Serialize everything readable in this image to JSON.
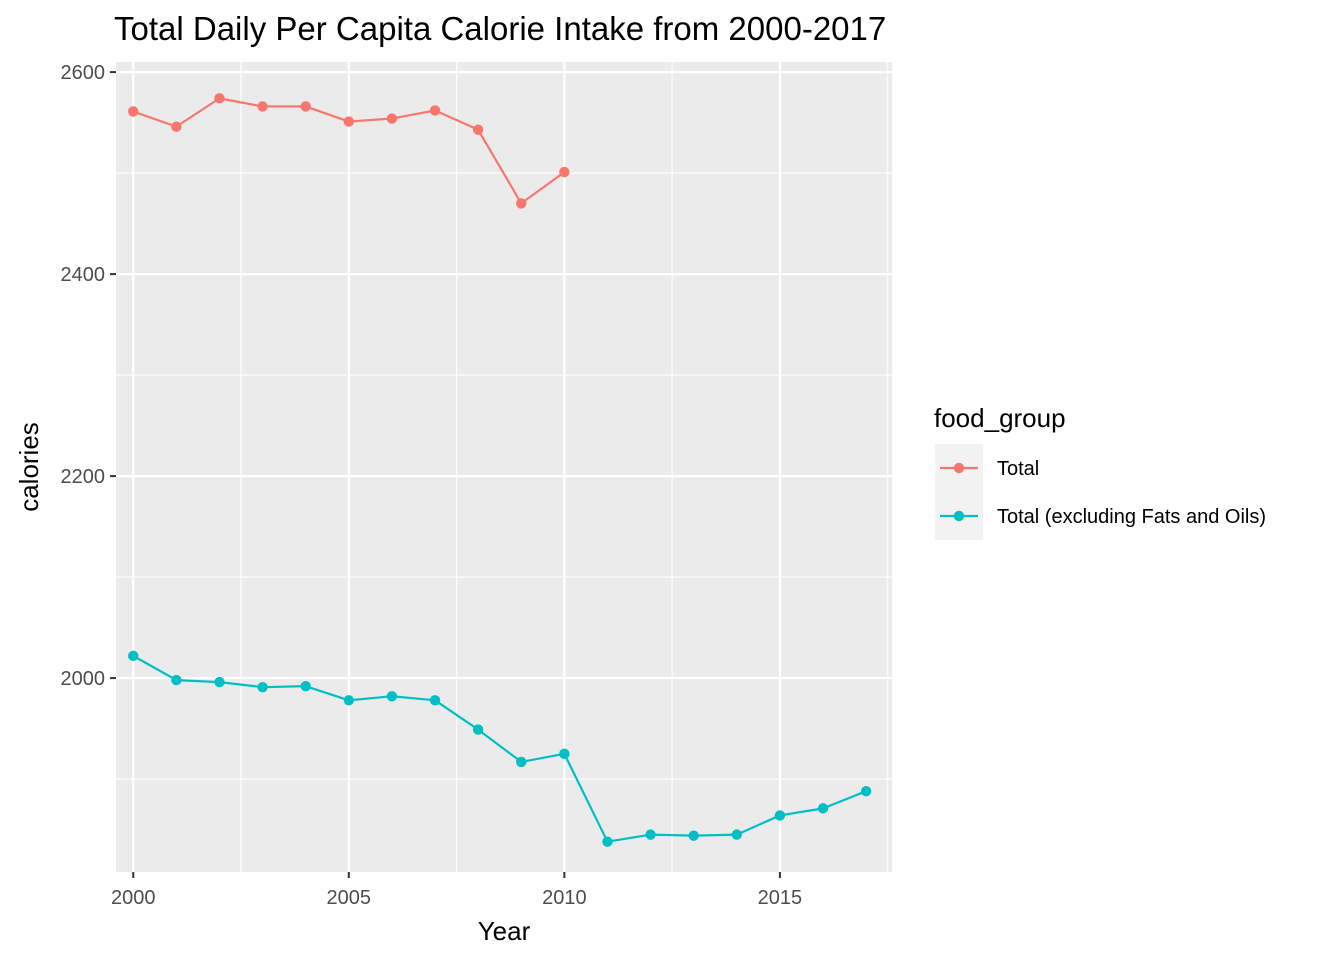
{
  "chart_data": {
    "type": "line",
    "title": "Total Daily Per Capita Calorie Intake from 2000-2017",
    "xlabel": "Year",
    "ylabel": "calories",
    "xlim": [
      1999.6,
      2017.6
    ],
    "ylim": [
      1808,
      2610
    ],
    "x_ticks": [
      2000,
      2005,
      2010,
      2015
    ],
    "x_minor": [
      2002.5,
      2007.5,
      2012.5,
      2017.5
    ],
    "y_ticks": [
      2000,
      2200,
      2400,
      2600
    ],
    "y_minor": [
      1900,
      2100,
      2300,
      2500
    ],
    "x_tick_labels": [
      "2000",
      "2005",
      "2010",
      "2015"
    ],
    "y_tick_labels": [
      "2000",
      "2200",
      "2400",
      "2600"
    ],
    "grid": true,
    "legend_position": "right",
    "legend_title": "food_group",
    "series": [
      {
        "name": "Total",
        "color": "#F8766D",
        "x": [
          2000,
          2001,
          2002,
          2003,
          2004,
          2005,
          2006,
          2007,
          2008,
          2009,
          2010
        ],
        "y": [
          2561,
          2546,
          2574,
          2566,
          2566,
          2551,
          2554,
          2562,
          2543,
          2470,
          2501
        ]
      },
      {
        "name": "Total (excluding Fats and Oils)",
        "color": "#00BFC4",
        "x": [
          2000,
          2001,
          2002,
          2003,
          2004,
          2005,
          2006,
          2007,
          2008,
          2009,
          2010,
          2011,
          2012,
          2013,
          2014,
          2015,
          2016,
          2017
        ],
        "y": [
          2022,
          1998,
          1996,
          1991,
          1992,
          1978,
          1982,
          1978,
          1949,
          1917,
          1925,
          1838,
          1845,
          1844,
          1845,
          1864,
          1871,
          1888
        ]
      }
    ]
  }
}
